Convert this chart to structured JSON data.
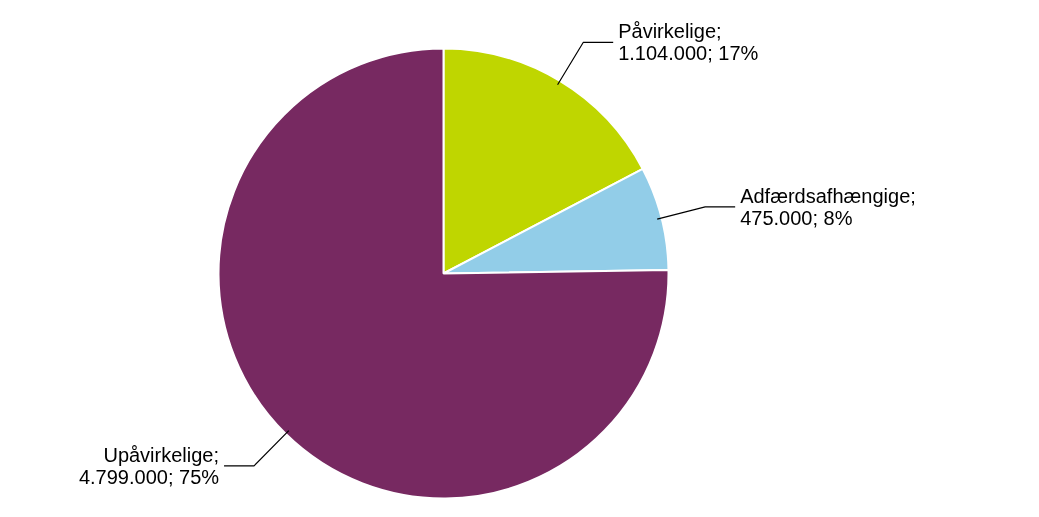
{
  "chart_data": {
    "type": "pie",
    "categories": [
      "Påvirkelige",
      "Adfærdsafhængige",
      "Upåvirkelige"
    ],
    "values": [
      1104000,
      475000,
      4799000
    ],
    "colors": [
      "#bfd600",
      "#92cde8",
      "#772961"
    ],
    "value_labels": [
      ";\n1.104.000; 17%",
      ";\n475.000; 8%",
      ";\n4.799.000; 75%"
    ]
  }
}
